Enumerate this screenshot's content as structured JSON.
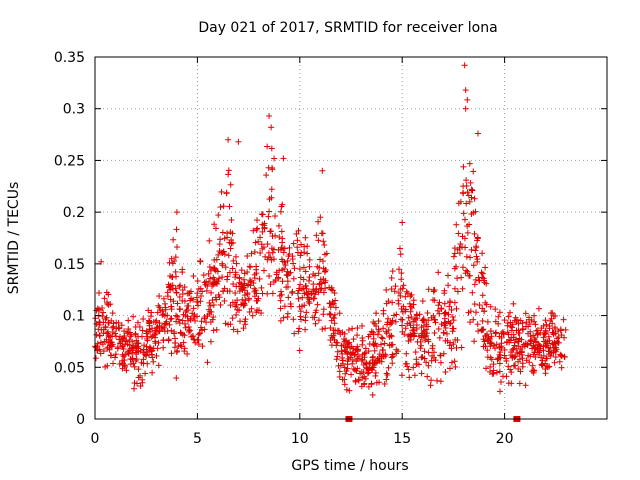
{
  "chart_data": {
    "type": "scatter",
    "title": "Day 021 of 2017, SRMTID for receiver lona",
    "xlabel": "GPS time / hours",
    "ylabel": "SRMTID / TECUs",
    "xlim": [
      0,
      25
    ],
    "ylim": [
      0,
      0.35
    ],
    "xticks": [
      0,
      5,
      10,
      15,
      20
    ],
    "yticks": [
      0,
      0.05,
      0.1,
      0.15,
      0.2,
      0.25,
      0.3,
      0.35
    ],
    "xtick_labels": [
      "0",
      "5",
      "10",
      "15",
      "20"
    ],
    "ytick_labels": [
      "0",
      "0.05",
      "0.1",
      "0.15",
      "0.2",
      "0.25",
      "0.3",
      "0.35"
    ],
    "grid": true,
    "marker": "+",
    "series_color": "#e00000",
    "series": [
      {
        "name": "SRMTID",
        "envelope": [
          {
            "x": 0.0,
            "low": 0.05,
            "high": 0.11
          },
          {
            "x": 0.3,
            "low": 0.045,
            "high": 0.15
          },
          {
            "x": 1.0,
            "low": 0.04,
            "high": 0.11
          },
          {
            "x": 2.0,
            "low": 0.025,
            "high": 0.1
          },
          {
            "x": 3.0,
            "low": 0.045,
            "high": 0.12
          },
          {
            "x": 3.5,
            "low": 0.06,
            "high": 0.14
          },
          {
            "x": 4.0,
            "low": 0.03,
            "high": 0.2
          },
          {
            "x": 4.5,
            "low": 0.05,
            "high": 0.14
          },
          {
            "x": 5.0,
            "low": 0.05,
            "high": 0.15
          },
          {
            "x": 6.0,
            "low": 0.06,
            "high": 0.2
          },
          {
            "x": 6.5,
            "low": 0.08,
            "high": 0.27
          },
          {
            "x": 7.0,
            "low": 0.08,
            "high": 0.15
          },
          {
            "x": 8.0,
            "low": 0.08,
            "high": 0.2
          },
          {
            "x": 8.5,
            "low": 0.08,
            "high": 0.29
          },
          {
            "x": 9.0,
            "low": 0.07,
            "high": 0.25
          },
          {
            "x": 9.5,
            "low": 0.08,
            "high": 0.17
          },
          {
            "x": 10.0,
            "low": 0.06,
            "high": 0.2
          },
          {
            "x": 10.5,
            "low": 0.07,
            "high": 0.17
          },
          {
            "x": 11.0,
            "low": 0.07,
            "high": 0.24
          },
          {
            "x": 11.5,
            "low": 0.06,
            "high": 0.15
          },
          {
            "x": 12.0,
            "low": 0.03,
            "high": 0.1
          },
          {
            "x": 12.5,
            "low": 0.03,
            "high": 0.1
          },
          {
            "x": 13.0,
            "low": 0.02,
            "high": 0.09
          },
          {
            "x": 14.0,
            "low": 0.02,
            "high": 0.11
          },
          {
            "x": 15.0,
            "low": 0.03,
            "high": 0.18
          },
          {
            "x": 16.0,
            "low": 0.03,
            "high": 0.12
          },
          {
            "x": 17.0,
            "low": 0.03,
            "high": 0.15
          },
          {
            "x": 17.5,
            "low": 0.03,
            "high": 0.16
          },
          {
            "x": 18.0,
            "low": 0.08,
            "high": 0.34
          },
          {
            "x": 18.5,
            "low": 0.06,
            "high": 0.27
          },
          {
            "x": 19.0,
            "low": 0.05,
            "high": 0.15
          },
          {
            "x": 19.5,
            "low": 0.02,
            "high": 0.13
          },
          {
            "x": 20.0,
            "low": 0.03,
            "high": 0.11
          },
          {
            "x": 21.0,
            "low": 0.03,
            "high": 0.12
          },
          {
            "x": 22.0,
            "low": 0.03,
            "high": 0.11
          },
          {
            "x": 22.5,
            "low": 0.04,
            "high": 0.11
          },
          {
            "x": 23.0,
            "low": 0.04,
            "high": 0.11
          }
        ],
        "outliers": [
          {
            "x": 18.05,
            "y": 0.342
          },
          {
            "x": 18.1,
            "y": 0.318
          },
          {
            "x": 18.1,
            "y": 0.3
          },
          {
            "x": 8.5,
            "y": 0.293
          },
          {
            "x": 8.6,
            "y": 0.282
          },
          {
            "x": 18.7,
            "y": 0.276
          },
          {
            "x": 6.5,
            "y": 0.27
          },
          {
            "x": 7.0,
            "y": 0.268
          },
          {
            "x": 9.2,
            "y": 0.252
          },
          {
            "x": 11.1,
            "y": 0.24
          },
          {
            "x": 15.0,
            "y": 0.19
          },
          {
            "x": 4.0,
            "y": 0.2
          },
          {
            "x": 0.3,
            "y": 0.152
          }
        ],
        "zero_flags": [
          12.4,
          20.6
        ]
      }
    ]
  }
}
